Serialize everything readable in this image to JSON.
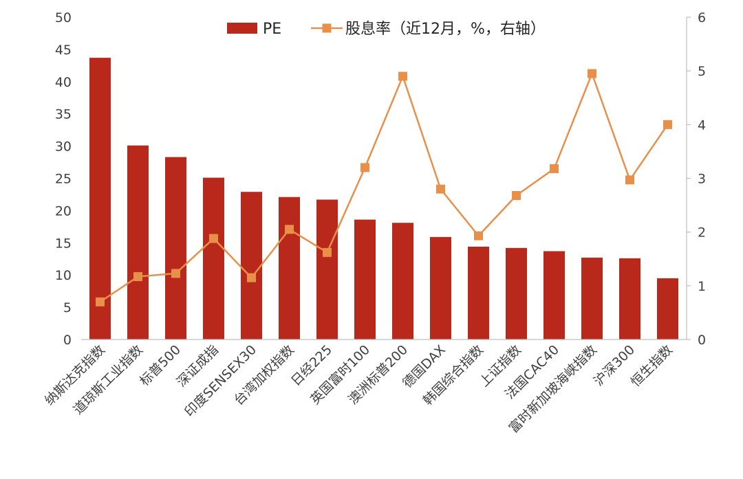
{
  "chart_data": {
    "type": "bar",
    "categories": [
      "纳斯达克指数",
      "道琼斯工业指数",
      "标普500",
      "深证成指",
      "印度SENSEX30",
      "台湾加权指数",
      "日经225",
      "英国富时100",
      "澳洲标普200",
      "德国DAX",
      "韩国综合指数",
      "上证指数",
      "法国CAC40",
      "富时新加坡海峡指数",
      "沪深300",
      "恒生指数"
    ],
    "series": [
      {
        "name": "PE",
        "kind": "bar",
        "axis": "left",
        "color": "#B8291C",
        "values": [
          43.7,
          30.1,
          28.3,
          25.1,
          22.9,
          22.1,
          21.7,
          18.6,
          18.1,
          15.9,
          14.4,
          14.2,
          13.7,
          12.7,
          12.6,
          9.5
        ]
      },
      {
        "name": "股息率（近12月，%，右轴）",
        "kind": "line",
        "axis": "right",
        "color": "#E8904A",
        "values": [
          0.7,
          1.17,
          1.23,
          1.88,
          1.15,
          2.05,
          1.62,
          3.2,
          4.9,
          2.8,
          1.93,
          2.68,
          3.18,
          4.95,
          2.97,
          4.0
        ]
      }
    ],
    "left_axis": {
      "ylim": [
        0,
        50
      ],
      "ticks": [
        0,
        5,
        10,
        15,
        20,
        25,
        30,
        35,
        40,
        45,
        50
      ]
    },
    "right_axis": {
      "ylim": [
        0,
        6
      ],
      "ticks": [
        0,
        1,
        2,
        3,
        4,
        5,
        6
      ]
    },
    "title": "",
    "xlabel": "",
    "ylabel": "",
    "grid": false,
    "legend_position": "top"
  }
}
